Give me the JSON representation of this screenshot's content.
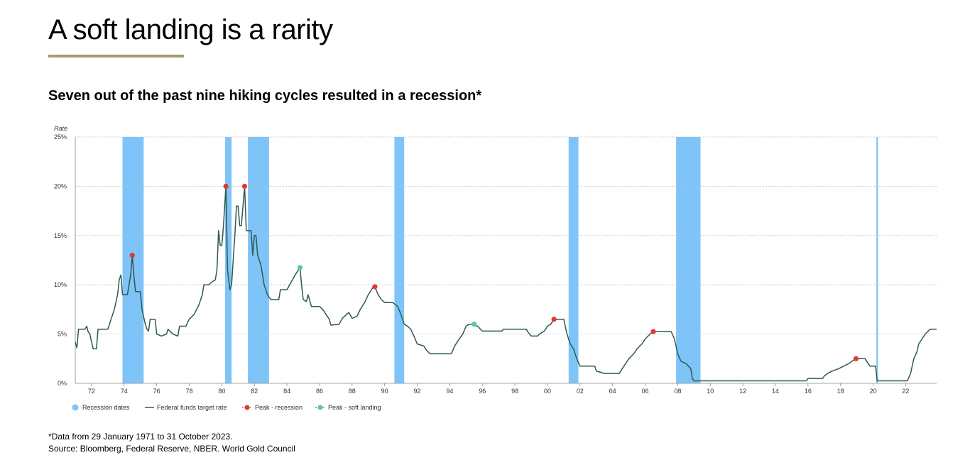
{
  "page": {
    "title": "A soft landing is a rarity",
    "subtitle": "Seven out of the past nine hiking cycles resulted in a recession*",
    "footnote": "*Data from 29 January 1971 to 31 October 2023.",
    "source": "Source: Bloomberg, Federal Reserve, NBER. World Gold Council",
    "accent_color": "#a89a6a"
  },
  "chart_data": {
    "type": "line",
    "ylabel": "Rate",
    "xlim": [
      1971.0,
      2023.9
    ],
    "ylim": [
      0,
      25
    ],
    "y_ticks": [
      0,
      5,
      10,
      15,
      20,
      25
    ],
    "y_tick_labels": [
      "0%",
      "5%",
      "10%",
      "15%",
      "20%",
      "25%"
    ],
    "x_ticks": [
      1972,
      1974,
      1976,
      1978,
      1980,
      1982,
      1984,
      1986,
      1988,
      1990,
      1992,
      1994,
      1996,
      1998,
      2000,
      2002,
      2004,
      2006,
      2008,
      2010,
      2012,
      2014,
      2016,
      2018,
      2020,
      2022
    ],
    "x_tick_labels": [
      "72",
      "74",
      "76",
      "78",
      "80",
      "82",
      "84",
      "86",
      "88",
      "90",
      "92",
      "94",
      "96",
      "98",
      "00",
      "02",
      "04",
      "06",
      "08",
      "10",
      "12",
      "14",
      "16",
      "18",
      "20",
      "22"
    ],
    "grid": true,
    "legend_position": "bottom-left",
    "legend": [
      {
        "label": "Recession dates",
        "kind": "recession"
      },
      {
        "label": "Federal funds target rate",
        "kind": "line"
      },
      {
        "label": "Peak - recession",
        "kind": "peak-recession"
      },
      {
        "label": "Peak - soft landing",
        "kind": "peak-soft"
      }
    ],
    "colors": {
      "recession": "#7fc4f8",
      "line": "#2d5a4c",
      "peak_recession": "#e03a2f",
      "peak_soft": "#5cc99a",
      "grid": "#bdbdbd",
      "axis": "#888888",
      "tick_label": "#333333"
    },
    "recessions": [
      [
        1973.9,
        1975.2
      ],
      [
        1980.2,
        1980.6
      ],
      [
        1981.6,
        1982.9
      ],
      [
        1990.6,
        1991.2
      ],
      [
        2001.3,
        2001.9
      ],
      [
        2007.9,
        2009.4
      ],
      [
        2020.2,
        2020.3
      ]
    ],
    "series": [
      {
        "name": "Federal funds target rate",
        "points": [
          [
            1971.0,
            4.2
          ],
          [
            1971.1,
            3.6
          ],
          [
            1971.2,
            5.5
          ],
          [
            1971.6,
            5.5
          ],
          [
            1971.7,
            5.8
          ],
          [
            1971.8,
            5.2
          ],
          [
            1971.9,
            5.0
          ],
          [
            1972.0,
            4.2
          ],
          [
            1972.1,
            3.5
          ],
          [
            1972.3,
            3.5
          ],
          [
            1972.4,
            5.5
          ],
          [
            1973.0,
            5.5
          ],
          [
            1973.2,
            6.5
          ],
          [
            1973.4,
            7.5
          ],
          [
            1973.6,
            9.0
          ],
          [
            1973.7,
            10.5
          ],
          [
            1973.8,
            11.0
          ],
          [
            1973.9,
            9.0
          ],
          [
            1974.2,
            9.0
          ],
          [
            1974.3,
            10.0
          ],
          [
            1974.4,
            11.0
          ],
          [
            1974.5,
            13.0
          ],
          [
            1974.6,
            11.0
          ],
          [
            1974.7,
            9.3
          ],
          [
            1975.0,
            9.3
          ],
          [
            1975.1,
            7.5
          ],
          [
            1975.3,
            6.0
          ],
          [
            1975.4,
            5.5
          ],
          [
            1975.5,
            5.3
          ],
          [
            1975.6,
            6.5
          ],
          [
            1975.9,
            6.5
          ],
          [
            1976.0,
            5.0
          ],
          [
            1976.3,
            4.8
          ],
          [
            1976.6,
            5.0
          ],
          [
            1976.7,
            5.5
          ],
          [
            1976.8,
            5.3
          ],
          [
            1977.0,
            5.0
          ],
          [
            1977.3,
            4.8
          ],
          [
            1977.4,
            5.8
          ],
          [
            1977.8,
            5.8
          ],
          [
            1977.9,
            6.2
          ],
          [
            1978.0,
            6.5
          ],
          [
            1978.3,
            7.0
          ],
          [
            1978.6,
            8.0
          ],
          [
            1978.8,
            9.0
          ],
          [
            1978.9,
            10.0
          ],
          [
            1979.2,
            10.0
          ],
          [
            1979.4,
            10.3
          ],
          [
            1979.6,
            10.5
          ],
          [
            1979.7,
            11.5
          ],
          [
            1979.8,
            15.5
          ],
          [
            1979.9,
            14.0
          ],
          [
            1980.0,
            14.0
          ],
          [
            1980.1,
            16.0
          ],
          [
            1980.25,
            20.0
          ],
          [
            1980.35,
            11.5
          ],
          [
            1980.5,
            9.5
          ],
          [
            1980.6,
            10.0
          ],
          [
            1980.7,
            12.5
          ],
          [
            1980.8,
            15.0
          ],
          [
            1980.9,
            18.0
          ],
          [
            1981.0,
            18.0
          ],
          [
            1981.1,
            16.0
          ],
          [
            1981.2,
            16.0
          ],
          [
            1981.4,
            20.0
          ],
          [
            1981.5,
            15.5
          ],
          [
            1981.7,
            15.5
          ],
          [
            1981.8,
            15.5
          ],
          [
            1981.9,
            13.0
          ],
          [
            1982.0,
            15.0
          ],
          [
            1982.1,
            15.0
          ],
          [
            1982.2,
            13.0
          ],
          [
            1982.4,
            12.0
          ],
          [
            1982.5,
            11.0
          ],
          [
            1982.6,
            10.0
          ],
          [
            1982.8,
            9.0
          ],
          [
            1983.0,
            8.5
          ],
          [
            1983.5,
            8.5
          ],
          [
            1983.6,
            9.5
          ],
          [
            1984.0,
            9.5
          ],
          [
            1984.5,
            11.0
          ],
          [
            1984.8,
            11.75
          ],
          [
            1984.9,
            10.0
          ],
          [
            1985.0,
            8.5
          ],
          [
            1985.2,
            8.3
          ],
          [
            1985.3,
            9.0
          ],
          [
            1985.5,
            7.8
          ],
          [
            1986.0,
            7.8
          ],
          [
            1986.2,
            7.5
          ],
          [
            1986.4,
            7.0
          ],
          [
            1986.6,
            6.5
          ],
          [
            1986.7,
            5.9
          ],
          [
            1987.2,
            6.0
          ],
          [
            1987.4,
            6.6
          ],
          [
            1987.8,
            7.2
          ],
          [
            1988.0,
            6.6
          ],
          [
            1988.3,
            6.8
          ],
          [
            1988.5,
            7.5
          ],
          [
            1988.8,
            8.3
          ],
          [
            1989.0,
            9.0
          ],
          [
            1989.3,
            9.8
          ],
          [
            1989.4,
            9.8
          ],
          [
            1989.6,
            9.0
          ],
          [
            1989.8,
            8.5
          ],
          [
            1990.0,
            8.2
          ],
          [
            1990.5,
            8.2
          ],
          [
            1990.8,
            7.8
          ],
          [
            1991.0,
            7.0
          ],
          [
            1991.2,
            6.0
          ],
          [
            1991.4,
            5.8
          ],
          [
            1991.6,
            5.5
          ],
          [
            1991.8,
            4.8
          ],
          [
            1992.0,
            4.0
          ],
          [
            1992.4,
            3.8
          ],
          [
            1992.6,
            3.3
          ],
          [
            1992.8,
            3.0
          ],
          [
            1994.1,
            3.0
          ],
          [
            1994.3,
            3.8
          ],
          [
            1994.5,
            4.3
          ],
          [
            1994.8,
            5.0
          ],
          [
            1995.0,
            5.8
          ],
          [
            1995.2,
            6.0
          ],
          [
            1995.4,
            6.0
          ],
          [
            1995.7,
            5.8
          ],
          [
            1996.0,
            5.3
          ],
          [
            1997.2,
            5.3
          ],
          [
            1997.3,
            5.5
          ],
          [
            1998.7,
            5.5
          ],
          [
            1998.8,
            5.2
          ],
          [
            1999.0,
            4.8
          ],
          [
            1999.4,
            4.8
          ],
          [
            1999.5,
            5.0
          ],
          [
            1999.8,
            5.3
          ],
          [
            2000.0,
            5.8
          ],
          [
            2000.2,
            6.0
          ],
          [
            2000.4,
            6.5
          ],
          [
            2001.0,
            6.5
          ],
          [
            2001.2,
            5.0
          ],
          [
            2001.4,
            4.0
          ],
          [
            2001.6,
            3.5
          ],
          [
            2001.8,
            2.5
          ],
          [
            2002.0,
            1.75
          ],
          [
            2002.9,
            1.75
          ],
          [
            2003.0,
            1.25
          ],
          [
            2003.5,
            1.0
          ],
          [
            2004.4,
            1.0
          ],
          [
            2004.6,
            1.5
          ],
          [
            2004.8,
            2.0
          ],
          [
            2005.0,
            2.5
          ],
          [
            2005.3,
            3.0
          ],
          [
            2005.5,
            3.5
          ],
          [
            2005.8,
            4.0
          ],
          [
            2006.0,
            4.5
          ],
          [
            2006.3,
            5.0
          ],
          [
            2006.5,
            5.25
          ],
          [
            2007.6,
            5.25
          ],
          [
            2007.8,
            4.5
          ],
          [
            2008.0,
            3.0
          ],
          [
            2008.2,
            2.25
          ],
          [
            2008.5,
            2.0
          ],
          [
            2008.8,
            1.5
          ],
          [
            2008.9,
            0.5
          ],
          [
            2009.0,
            0.25
          ],
          [
            2015.9,
            0.25
          ],
          [
            2016.0,
            0.5
          ],
          [
            2016.9,
            0.5
          ],
          [
            2017.0,
            0.75
          ],
          [
            2017.2,
            1.0
          ],
          [
            2017.5,
            1.25
          ],
          [
            2017.9,
            1.5
          ],
          [
            2018.2,
            1.75
          ],
          [
            2018.5,
            2.0
          ],
          [
            2018.7,
            2.25
          ],
          [
            2018.95,
            2.5
          ],
          [
            2019.5,
            2.5
          ],
          [
            2019.6,
            2.25
          ],
          [
            2019.8,
            1.75
          ],
          [
            2020.15,
            1.75
          ],
          [
            2020.25,
            0.25
          ],
          [
            2022.1,
            0.25
          ],
          [
            2022.3,
            1.0
          ],
          [
            2022.4,
            1.75
          ],
          [
            2022.5,
            2.5
          ],
          [
            2022.7,
            3.25
          ],
          [
            2022.8,
            4.0
          ],
          [
            2023.0,
            4.5
          ],
          [
            2023.2,
            5.0
          ],
          [
            2023.5,
            5.5
          ],
          [
            2023.9,
            5.5
          ]
        ]
      }
    ],
    "peaks_recession": [
      [
        1974.5,
        13.0
      ],
      [
        1980.25,
        20.0
      ],
      [
        1981.4,
        20.0
      ],
      [
        1989.4,
        9.8
      ],
      [
        2000.4,
        6.5
      ],
      [
        2006.5,
        5.25
      ],
      [
        2018.95,
        2.5
      ]
    ],
    "peaks_soft_landing": [
      [
        1984.8,
        11.75
      ],
      [
        1995.5,
        6.0
      ]
    ]
  }
}
